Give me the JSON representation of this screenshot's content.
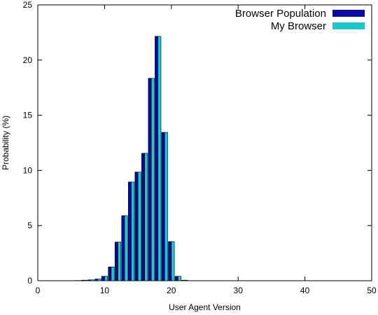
{
  "chart_data": {
    "type": "bar",
    "title": "",
    "xlabel": "User Agent Version",
    "ylabel": "Probability (%)",
    "xlim": [
      0,
      50
    ],
    "ylim": [
      0,
      25
    ],
    "x_ticks": [
      0,
      10,
      20,
      30,
      40,
      50
    ],
    "y_ticks": [
      0,
      5,
      10,
      15,
      20,
      25
    ],
    "grid": false,
    "legend_position": "top-right",
    "x": [
      6,
      7,
      8,
      9,
      10,
      11,
      12,
      13,
      14,
      15,
      16,
      17,
      18,
      19,
      20,
      21,
      22
    ],
    "series": [
      {
        "name": "Browser Population",
        "color": "#0a0a9e",
        "values": [
          0.02,
          0.05,
          0.08,
          0.15,
          0.4,
          1.25,
          3.5,
          5.9,
          8.95,
          9.85,
          11.55,
          18.35,
          22.15,
          13.45,
          3.55,
          0.4,
          0.05
        ]
      },
      {
        "name": "My Browser",
        "color": "#1ec8c8",
        "values": [
          0.02,
          0.05,
          0.08,
          0.15,
          0.4,
          1.25,
          3.5,
          5.9,
          8.95,
          9.85,
          11.55,
          18.35,
          22.15,
          13.45,
          3.55,
          0.4,
          0.05
        ]
      }
    ]
  }
}
